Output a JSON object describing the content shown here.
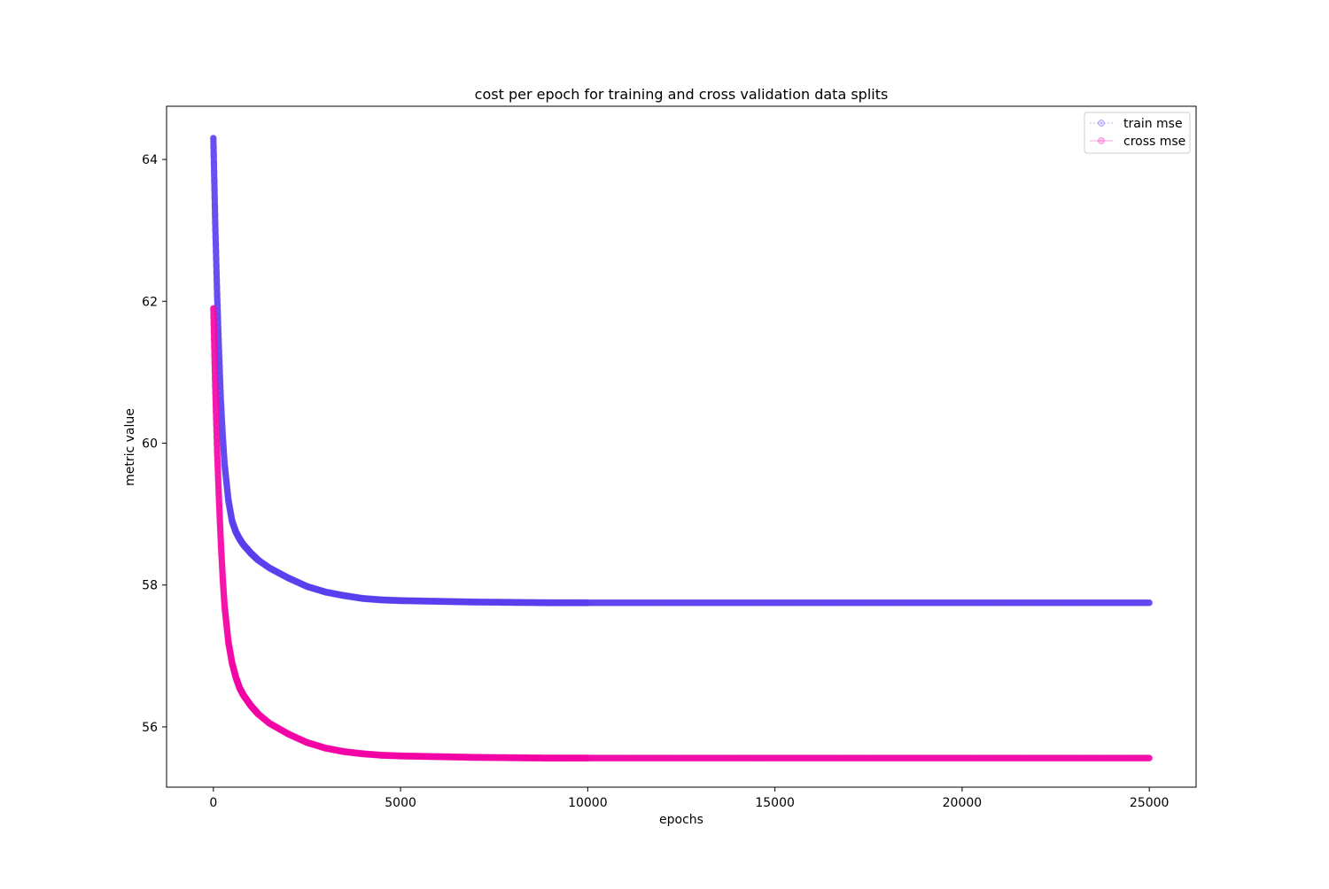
{
  "chart_data": {
    "type": "line",
    "title": "cost per epoch for training and cross validation data splits",
    "xlabel": "epochs",
    "ylabel": "metric value",
    "xlim": [
      -1250,
      26250
    ],
    "ylim": [
      55.15,
      64.75
    ],
    "xticks": [
      0,
      5000,
      10000,
      15000,
      20000,
      25000
    ],
    "xtick_labels": [
      "0",
      "5000",
      "10000",
      "15000",
      "20000",
      "25000"
    ],
    "yticks": [
      56,
      58,
      60,
      62,
      64
    ],
    "ytick_labels": [
      "56",
      "58",
      "60",
      "62",
      "64"
    ],
    "grid": false,
    "legend_position": "top-right",
    "series": [
      {
        "name": "train mse",
        "color": "#5b3ff0",
        "x": [
          0,
          50,
          100,
          150,
          200,
          250,
          300,
          400,
          500,
          600,
          700,
          800,
          1000,
          1200,
          1500,
          2000,
          2500,
          3000,
          3500,
          4000,
          4500,
          5000,
          6000,
          7000,
          8000,
          9000,
          10000,
          15000,
          20000,
          25000
        ],
        "values": [
          64.3,
          63.1,
          62.1,
          61.3,
          60.6,
          60.1,
          59.7,
          59.2,
          58.9,
          58.75,
          58.65,
          58.57,
          58.45,
          58.35,
          58.24,
          58.1,
          57.98,
          57.9,
          57.85,
          57.81,
          57.79,
          57.78,
          57.77,
          57.76,
          57.755,
          57.75,
          57.75,
          57.75,
          57.75,
          57.75
        ]
      },
      {
        "name": "cross mse",
        "color": "#f505a8",
        "x": [
          0,
          50,
          100,
          150,
          200,
          250,
          300,
          400,
          500,
          600,
          700,
          800,
          1000,
          1200,
          1500,
          2000,
          2500,
          3000,
          3500,
          4000,
          4500,
          5000,
          6000,
          7000,
          8000,
          9000,
          10000,
          15000,
          20000,
          25000
        ],
        "values": [
          61.9,
          60.8,
          59.9,
          59.2,
          58.6,
          58.1,
          57.7,
          57.2,
          56.9,
          56.7,
          56.55,
          56.45,
          56.3,
          56.18,
          56.05,
          55.9,
          55.78,
          55.7,
          55.65,
          55.62,
          55.6,
          55.59,
          55.58,
          55.57,
          55.565,
          55.56,
          55.56,
          55.56,
          55.56,
          55.56
        ]
      }
    ]
  }
}
